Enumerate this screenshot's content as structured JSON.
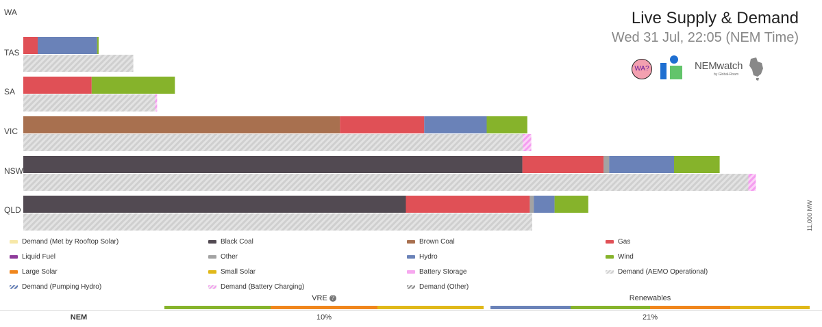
{
  "header": {
    "title": "Live Supply & Demand",
    "subtitle": "Wed 31 Jul, 22:05 (NEM Time)",
    "wa_badge": "WA?",
    "nemwatch_logo": "NEMwatch",
    "nemwatch_by": "by Global-Roam"
  },
  "colors": {
    "black_coal": "#524a52",
    "brown_coal": "#a8704f",
    "gas": "#e05056",
    "other": "#a3a3a3",
    "hydro": "#6a82b8",
    "wind": "#86b32b",
    "liquid_fuel": "#8e3b9a",
    "large_solar": "#f0861c",
    "small_solar": "#e0b819",
    "battery_storage": "#f7a8ef",
    "rooftop_demand": "#f7e8a8",
    "demand_hatch": "#cfcfcf",
    "pumping_hydro": "#5b78b5",
    "battery_charging": "#f59df0",
    "demand_other": "#8a8a8a"
  },
  "chart_data": {
    "type": "bar",
    "orientation": "horizontal-stacked",
    "categories": [
      "WA",
      "TAS",
      "SA",
      "VIC",
      "NSW",
      "QLD"
    ],
    "xlim": [
      0,
      11000
    ],
    "unit": "MW",
    "scale_label": "11,000 MW",
    "supply": {
      "WA": [],
      "TAS": [
        {
          "fuel": "Gas",
          "color": "#e05056",
          "value": 145
        },
        {
          "fuel": "Hydro",
          "color": "#6a82b8",
          "value": 600
        },
        {
          "fuel": "Wind",
          "color": "#86b32b",
          "value": 15
        }
      ],
      "SA": [
        {
          "fuel": "Gas",
          "color": "#e05056",
          "value": 690
        },
        {
          "fuel": "Wind",
          "color": "#86b32b",
          "value": 840
        }
      ],
      "VIC": [
        {
          "fuel": "Brown Coal",
          "color": "#a8704f",
          "value": 3195
        },
        {
          "fuel": "Gas",
          "color": "#e05056",
          "value": 850
        },
        {
          "fuel": "Hydro",
          "color": "#6a82b8",
          "value": 630
        },
        {
          "fuel": "Wind",
          "color": "#86b32b",
          "value": 410
        }
      ],
      "NSW": [
        {
          "fuel": "Black Coal",
          "color": "#524a52",
          "value": 5035
        },
        {
          "fuel": "Gas",
          "color": "#e05056",
          "value": 820
        },
        {
          "fuel": "Other",
          "color": "#a3a3a3",
          "value": 55
        },
        {
          "fuel": "Hydro",
          "color": "#6a82b8",
          "value": 655
        },
        {
          "fuel": "Wind",
          "color": "#86b32b",
          "value": 460
        }
      ],
      "QLD": [
        {
          "fuel": "Black Coal",
          "color": "#524a52",
          "value": 3860
        },
        {
          "fuel": "Gas",
          "color": "#e05056",
          "value": 1250
        },
        {
          "fuel": "Other",
          "color": "#a3a3a3",
          "value": 40
        },
        {
          "fuel": "Hydro",
          "color": "#6a82b8",
          "value": 210
        },
        {
          "fuel": "Wind",
          "color": "#86b32b",
          "value": 340
        }
      ]
    },
    "demand": {
      "WA": [],
      "TAS": [
        {
          "type": "Demand (AEMO Operational)",
          "value": 1110
        }
      ],
      "SA": [
        {
          "type": "Demand (AEMO Operational)",
          "value": 1330
        },
        {
          "type": "Demand (Battery Charging)",
          "value": 20
        }
      ],
      "VIC": [
        {
          "type": "Demand (AEMO Operational)",
          "value": 5040
        },
        {
          "type": "Demand (Battery Charging)",
          "value": 85
        }
      ],
      "NSW": [
        {
          "type": "Demand (AEMO Operational)",
          "value": 7315
        },
        {
          "type": "Demand (Battery Charging)",
          "value": 75
        }
      ],
      "QLD": [
        {
          "type": "Demand (AEMO Operational)",
          "value": 5135
        }
      ]
    }
  },
  "legend": [
    {
      "label": "Demand (Met by Rooftop Solar)",
      "color": "#f7e8a8",
      "hatch": false
    },
    {
      "label": "Black Coal",
      "color": "#524a52",
      "hatch": false
    },
    {
      "label": "Brown Coal",
      "color": "#a8704f",
      "hatch": false
    },
    {
      "label": "Gas",
      "color": "#e05056",
      "hatch": false
    },
    {
      "label": "Liquid Fuel",
      "color": "#8e3b9a",
      "hatch": false
    },
    {
      "label": "Other",
      "color": "#a3a3a3",
      "hatch": false
    },
    {
      "label": "Hydro",
      "color": "#6a82b8",
      "hatch": false
    },
    {
      "label": "Wind",
      "color": "#86b32b",
      "hatch": false
    },
    {
      "label": "Large Solar",
      "color": "#f0861c",
      "hatch": false
    },
    {
      "label": "Small Solar",
      "color": "#e0b819",
      "hatch": false
    },
    {
      "label": "Battery Storage",
      "color": "#f7a8ef",
      "hatch": false
    },
    {
      "label": "Demand (AEMO Operational)",
      "color": "#cfcfcf",
      "hatch": true
    },
    {
      "label": "Demand (Pumping Hydro)",
      "color": "#5b78b5",
      "hatch": true
    },
    {
      "label": "Demand (Battery Charging)",
      "color": "#f59df0",
      "hatch": true
    },
    {
      "label": "Demand (Other)",
      "color": "#8a8a8a",
      "hatch": true
    }
  ],
  "summary": {
    "row_label": "NEM",
    "vre": {
      "label": "VRE",
      "help_icon": "question-circle-icon",
      "value": "10%",
      "bar_colors": [
        "#86b32b",
        "#f0861c",
        "#e0b819"
      ]
    },
    "renewables": {
      "label": "Renewables",
      "value": "21%",
      "bar_colors": [
        "#6a82b8",
        "#86b32b",
        "#f0861c",
        "#e0b819"
      ]
    }
  }
}
